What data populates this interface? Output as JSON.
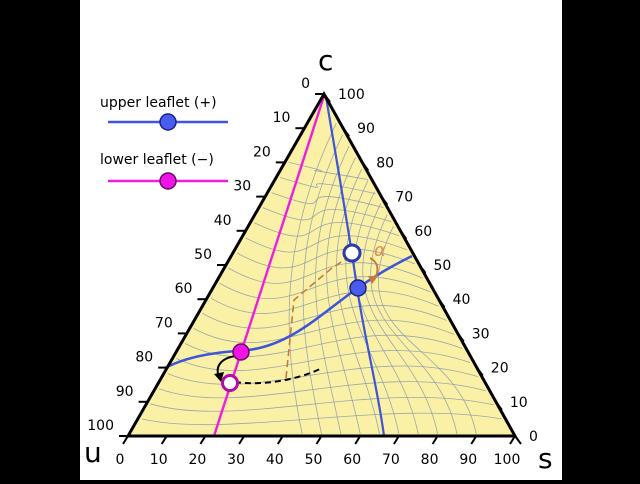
{
  "vertices": {
    "top": "c",
    "left": "u",
    "right": "s"
  },
  "ticks": {
    "left_edge": [
      "0",
      "10",
      "20",
      "30",
      "40",
      "50",
      "60",
      "70",
      "80",
      "90",
      "100"
    ],
    "right_edge": [
      "0",
      "10",
      "20",
      "30",
      "40",
      "50",
      "60",
      "70",
      "80",
      "90",
      "100"
    ],
    "bottom_edge": [
      "0",
      "10",
      "20",
      "30",
      "40",
      "50",
      "60",
      "70",
      "80",
      "90",
      "100"
    ]
  },
  "legend": {
    "upper_label": "upper leaflet (+)",
    "lower_label": "lower leaflet (−)"
  },
  "angle_label": "α",
  "colors": {
    "background": "#000000",
    "panel": "#ffffff",
    "triangle_fill": "#fbf1a6",
    "upper": "#3d55d6",
    "lower": "#ee1de0",
    "upper_marker": "#4a5cf0",
    "lower_marker": "#ef13e6",
    "contours": "#8a9aa8",
    "tie_line": "#c77a40",
    "ink": "#000000"
  }
}
